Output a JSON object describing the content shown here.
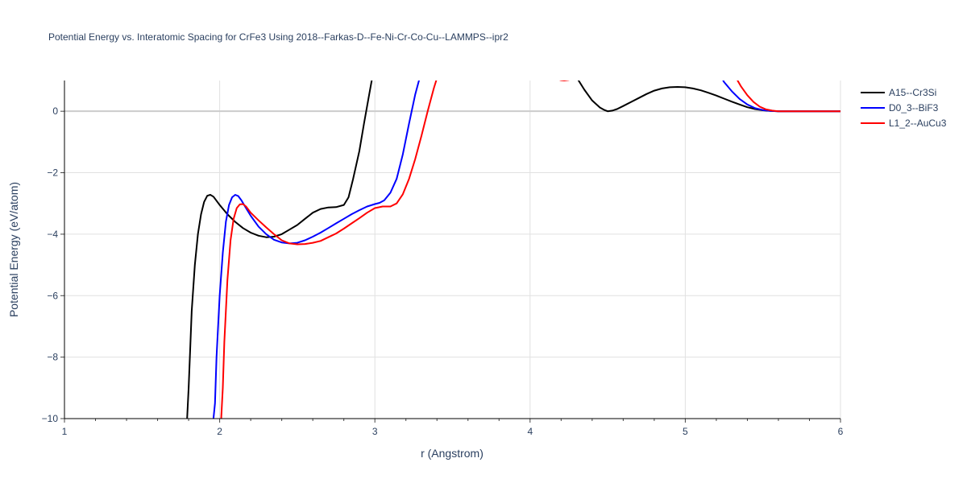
{
  "chart_data": {
    "type": "line",
    "title": "Potential Energy vs. Interatomic Spacing for CrFe3 Using 2018--Farkas-D--Fe-Ni-Cr-Co-Cu--LAMMPS--ipr2",
    "xlabel": "r (Angstrom)",
    "ylabel": "Potential Energy (eV/atom)",
    "xlim": [
      1,
      6
    ],
    "ylim": [
      -10,
      1
    ],
    "xticks": [
      1,
      2,
      3,
      4,
      5,
      6
    ],
    "xtick_labels": [
      "1",
      "2",
      "3",
      "4",
      "5",
      "6"
    ],
    "yticks": [
      0,
      -2,
      -4,
      -6,
      -8,
      -10
    ],
    "ytick_labels": [
      "0",
      "−2",
      "−4",
      "−6",
      "−8",
      "−10"
    ],
    "grid": true,
    "legend_position": "top-right",
    "series": [
      {
        "name": "A15--Cr3Si",
        "color": "#000000",
        "x": [
          1.79,
          1.8,
          1.82,
          1.84,
          1.86,
          1.88,
          1.9,
          1.92,
          1.94,
          1.96,
          2.0,
          2.05,
          2.1,
          2.15,
          2.2,
          2.25,
          2.3,
          2.35,
          2.4,
          2.45,
          2.5,
          2.55,
          2.6,
          2.65,
          2.7,
          2.75,
          2.8,
          2.83,
          2.86,
          2.9,
          2.93,
          2.96,
          2.98,
          3.0,
          3.02,
          3.04,
          3.06
        ],
        "y": [
          -10.0,
          -9.0,
          -6.5,
          -5.0,
          -4.0,
          -3.35,
          -2.95,
          -2.75,
          -2.72,
          -2.78,
          -3.05,
          -3.35,
          -3.6,
          -3.8,
          -3.95,
          -4.05,
          -4.1,
          -4.08,
          -4.0,
          -3.85,
          -3.7,
          -3.5,
          -3.3,
          -3.18,
          -3.13,
          -3.12,
          -3.05,
          -2.8,
          -2.2,
          -1.3,
          -0.4,
          0.45,
          1.0,
          1.6,
          2.2,
          2.8,
          3.4
        ],
        "x2": [
          4.25,
          4.3,
          4.35,
          4.4,
          4.45,
          4.48,
          4.5,
          4.53,
          4.56,
          4.6,
          4.65,
          4.7,
          4.75,
          4.8,
          4.85,
          4.9,
          4.95,
          5.0,
          5.05,
          5.1,
          5.15,
          5.2,
          5.25,
          5.3,
          5.35,
          5.4,
          5.45,
          5.5,
          5.55,
          5.6,
          5.7,
          5.8,
          5.9,
          6.0
        ],
        "y2": [
          1.5,
          1.1,
          0.7,
          0.35,
          0.12,
          0.04,
          0.0,
          0.02,
          0.07,
          0.17,
          0.3,
          0.43,
          0.56,
          0.67,
          0.74,
          0.78,
          0.79,
          0.78,
          0.74,
          0.68,
          0.6,
          0.51,
          0.41,
          0.31,
          0.22,
          0.13,
          0.07,
          0.03,
          0.01,
          0.0,
          0.0,
          0.0,
          0.0,
          0.0
        ]
      },
      {
        "name": "D0_3--BiF3",
        "color": "#0000ff",
        "x": [
          1.96,
          1.97,
          1.98,
          2.0,
          2.02,
          2.04,
          2.06,
          2.08,
          2.1,
          2.12,
          2.14,
          2.17,
          2.2,
          2.25,
          2.3,
          2.35,
          2.4,
          2.45,
          2.5,
          2.55,
          2.6,
          2.65,
          2.7,
          2.75,
          2.8,
          2.85,
          2.9,
          2.95,
          3.0,
          3.03,
          3.06,
          3.1,
          3.14,
          3.18,
          3.22,
          3.26,
          3.3,
          3.32
        ],
        "y": [
          -10.0,
          -9.5,
          -8.0,
          -6.0,
          -4.6,
          -3.6,
          -3.05,
          -2.8,
          -2.72,
          -2.76,
          -2.9,
          -3.15,
          -3.4,
          -3.75,
          -4.0,
          -4.18,
          -4.27,
          -4.3,
          -4.28,
          -4.2,
          -4.08,
          -3.95,
          -3.8,
          -3.65,
          -3.5,
          -3.35,
          -3.22,
          -3.1,
          -3.02,
          -2.98,
          -2.9,
          -2.65,
          -2.2,
          -1.4,
          -0.4,
          0.55,
          1.3,
          1.7
        ],
        "x2": [
          5.2,
          5.25,
          5.3,
          5.35,
          5.4,
          5.45,
          5.5,
          5.55,
          5.6,
          5.7,
          5.8,
          5.9,
          6.0
        ],
        "y2": [
          1.4,
          0.95,
          0.65,
          0.4,
          0.22,
          0.1,
          0.04,
          0.01,
          0.0,
          0.0,
          0.0,
          0.0,
          0.0
        ]
      },
      {
        "name": "L1_2--AuCu3",
        "color": "#ff0000",
        "x": [
          2.01,
          2.02,
          2.03,
          2.05,
          2.07,
          2.09,
          2.11,
          2.13,
          2.15,
          2.17,
          2.2,
          2.25,
          2.3,
          2.35,
          2.4,
          2.45,
          2.5,
          2.55,
          2.6,
          2.65,
          2.7,
          2.75,
          2.8,
          2.85,
          2.9,
          2.95,
          3.0,
          3.05,
          3.1,
          3.14,
          3.18,
          3.22,
          3.26,
          3.3,
          3.34,
          3.38,
          3.42,
          3.45
        ],
        "y": [
          -10.0,
          -9.0,
          -7.5,
          -5.5,
          -4.2,
          -3.5,
          -3.15,
          -3.03,
          -3.02,
          -3.1,
          -3.3,
          -3.55,
          -3.78,
          -4.0,
          -4.2,
          -4.3,
          -4.33,
          -4.32,
          -4.28,
          -4.22,
          -4.1,
          -3.98,
          -3.82,
          -3.65,
          -3.48,
          -3.3,
          -3.15,
          -3.1,
          -3.1,
          -3.0,
          -2.7,
          -2.2,
          -1.55,
          -0.8,
          0.0,
          0.75,
          1.4,
          1.8
        ],
        "x2": [
          4.13,
          4.17,
          4.2,
          4.22,
          4.25,
          4.28,
          4.31
        ],
        "y2": [
          1.3,
          1.05,
          1.01,
          1.0,
          1.02,
          1.08,
          1.3
        ],
        "x3": [
          5.28,
          5.32,
          5.36,
          5.4,
          5.44,
          5.48,
          5.52,
          5.56,
          5.6,
          5.7,
          5.8,
          5.9,
          6.0
        ],
        "y3": [
          1.6,
          1.15,
          0.8,
          0.52,
          0.3,
          0.15,
          0.06,
          0.02,
          0.0,
          0.0,
          0.0,
          0.0,
          0.0
        ]
      }
    ]
  }
}
